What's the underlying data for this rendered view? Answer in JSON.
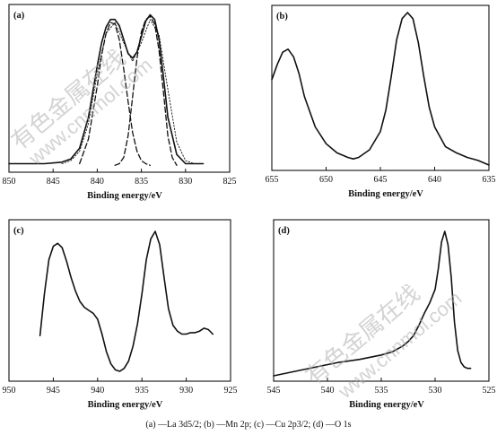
{
  "caption": "(a) —La 3d5/2; (b) —Mn 2p; (c) —Cu 2p3/2; (d) —O 1s",
  "watermark": {
    "cn": "有色金属在线",
    "url": "www.cnnmol.com"
  },
  "chart_data": [
    {
      "type": "line",
      "panel_label": "(a)",
      "xlabel": "Binding energy/eV",
      "xlim": [
        850,
        825
      ],
      "xticks": [
        850,
        845,
        840,
        835,
        830,
        825
      ],
      "ylim": [
        0,
        1
      ],
      "series": [
        {
          "style": "solid",
          "x": [
            850,
            848,
            846,
            844,
            843,
            842,
            841,
            840,
            839.5,
            839,
            838.5,
            838,
            837.5,
            837,
            836.5,
            836,
            835.5,
            835,
            834.5,
            834,
            833.5,
            833,
            832.5,
            832,
            831,
            830,
            829,
            828
          ],
          "y": [
            0.02,
            0.02,
            0.02,
            0.03,
            0.05,
            0.12,
            0.32,
            0.65,
            0.8,
            0.9,
            0.95,
            0.95,
            0.91,
            0.82,
            0.73,
            0.7,
            0.74,
            0.84,
            0.94,
            0.98,
            0.95,
            0.82,
            0.58,
            0.32,
            0.08,
            0.02,
            0.02,
            0.02
          ]
        },
        {
          "style": "dashed",
          "x": [
            842,
            841,
            840,
            839.5,
            839,
            838.5,
            838,
            837.5,
            837,
            836.5,
            836,
            835.5,
            835,
            834.5,
            834
          ],
          "y": [
            0.02,
            0.18,
            0.52,
            0.72,
            0.86,
            0.93,
            0.92,
            0.82,
            0.63,
            0.42,
            0.22,
            0.1,
            0.04,
            0.02,
            0.01
          ]
        },
        {
          "style": "dashed",
          "x": [
            838,
            837.5,
            837,
            836.5,
            836,
            835.5,
            835,
            834.5,
            834,
            833.5,
            833,
            832.5,
            832,
            831.5,
            831
          ],
          "y": [
            0.01,
            0.02,
            0.06,
            0.2,
            0.45,
            0.7,
            0.87,
            0.95,
            0.97,
            0.92,
            0.75,
            0.48,
            0.2,
            0.06,
            0.01
          ]
        },
        {
          "style": "dotted",
          "x": [
            844,
            843,
            842,
            841,
            840,
            839,
            838,
            837,
            836,
            835,
            834,
            833,
            832,
            831,
            830,
            829,
            828
          ],
          "y": [
            0.02,
            0.04,
            0.1,
            0.28,
            0.6,
            0.86,
            0.93,
            0.8,
            0.68,
            0.8,
            0.95,
            0.85,
            0.5,
            0.16,
            0.04,
            0.02,
            0.02
          ]
        }
      ]
    },
    {
      "type": "line",
      "panel_label": "(b)",
      "xlabel": "Binding energy/eV",
      "xlim": [
        655,
        635
      ],
      "xticks": [
        655,
        650,
        645,
        640,
        635
      ],
      "ylim": [
        0,
        1
      ],
      "series": [
        {
          "style": "solid",
          "x": [
            655,
            654.5,
            654,
            653.5,
            653,
            652.5,
            652,
            651,
            650,
            649,
            648,
            647.5,
            647,
            646,
            645,
            644.5,
            644,
            643.5,
            643,
            642.5,
            642,
            641.5,
            641,
            640.5,
            640,
            639,
            638,
            637,
            636,
            635
          ],
          "y": [
            0.56,
            0.66,
            0.74,
            0.76,
            0.71,
            0.6,
            0.45,
            0.25,
            0.14,
            0.08,
            0.05,
            0.04,
            0.05,
            0.1,
            0.22,
            0.36,
            0.58,
            0.82,
            0.96,
            1.0,
            0.96,
            0.8,
            0.58,
            0.38,
            0.25,
            0.12,
            0.08,
            0.05,
            0.03,
            0.0
          ]
        }
      ]
    },
    {
      "type": "line",
      "panel_label": "(c)",
      "xlabel": "Binding energy/eV",
      "xlim": [
        950,
        925
      ],
      "xticks": [
        950,
        945,
        940,
        935,
        930,
        925
      ],
      "ylim": [
        0,
        1
      ],
      "series": [
        {
          "style": "solid",
          "x": [
            946.5,
            946,
            945.5,
            945,
            944.5,
            944,
            943.5,
            943,
            942.5,
            942,
            941.5,
            941,
            940.5,
            940,
            939.5,
            939,
            938.5,
            938,
            937.5,
            937,
            936.5,
            936,
            935.5,
            935,
            934.5,
            934,
            933.5,
            933,
            932.5,
            932,
            931.5,
            931,
            930.5,
            930,
            929.5,
            929,
            928.5,
            928,
            927.5,
            927
          ],
          "y": [
            0.27,
            0.55,
            0.78,
            0.87,
            0.89,
            0.86,
            0.77,
            0.66,
            0.57,
            0.5,
            0.46,
            0.44,
            0.42,
            0.38,
            0.28,
            0.16,
            0.08,
            0.04,
            0.03,
            0.05,
            0.1,
            0.2,
            0.35,
            0.55,
            0.78,
            0.92,
            0.97,
            0.88,
            0.66,
            0.45,
            0.34,
            0.3,
            0.28,
            0.28,
            0.29,
            0.29,
            0.3,
            0.32,
            0.31,
            0.28
          ]
        }
      ]
    },
    {
      "type": "line",
      "panel_label": "(d)",
      "xlabel": "Binding energy/eV",
      "xlim": [
        545,
        525
      ],
      "xticks": [
        545,
        540,
        535,
        530,
        525
      ],
      "ylim": [
        0,
        1
      ],
      "series": [
        {
          "style": "solid",
          "x": [
            545,
            543,
            541,
            539,
            537,
            535,
            534,
            533,
            532.5,
            532,
            531.5,
            531,
            530.5,
            530,
            529.7,
            529.4,
            529.1,
            528.8,
            528.5,
            528.2,
            527.9,
            527.6,
            527.3,
            527,
            526.7
          ],
          "y": [
            0.0,
            0.03,
            0.06,
            0.09,
            0.11,
            0.14,
            0.16,
            0.2,
            0.23,
            0.27,
            0.34,
            0.42,
            0.49,
            0.58,
            0.72,
            0.9,
            0.97,
            0.88,
            0.66,
            0.36,
            0.17,
            0.09,
            0.06,
            0.05,
            0.05
          ]
        }
      ]
    }
  ]
}
